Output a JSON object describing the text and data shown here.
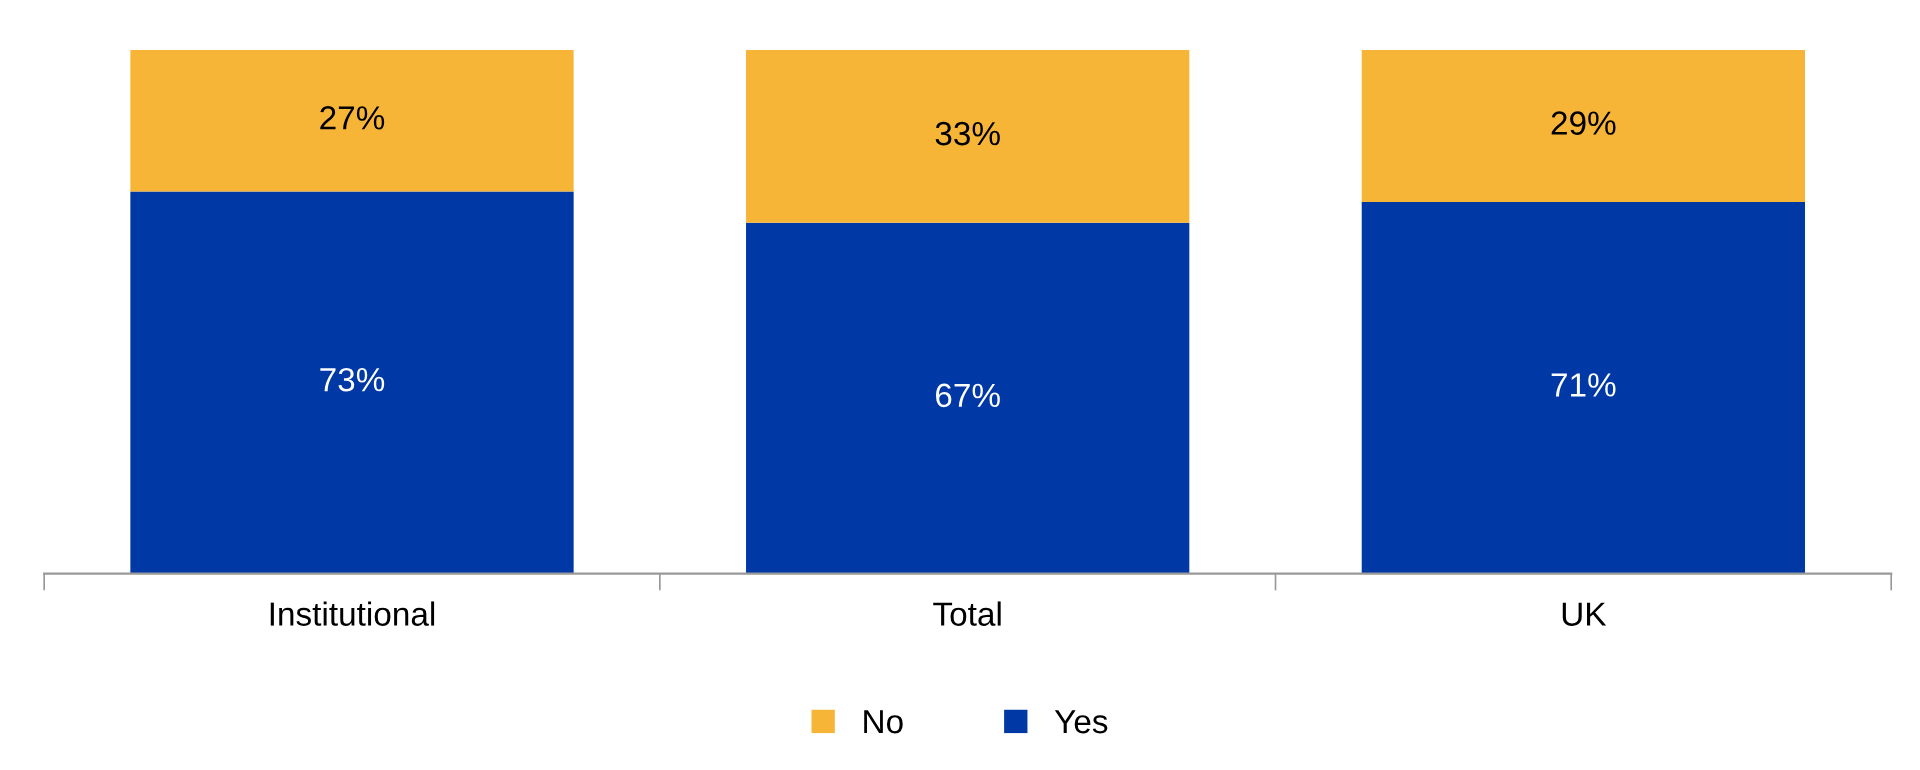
{
  "chart_data": {
    "type": "bar",
    "stacked": true,
    "categories": [
      "Institutional",
      "Total",
      "UK"
    ],
    "series": [
      {
        "name": "Yes",
        "color": "#0039a6",
        "values": [
          73,
          67,
          71
        ],
        "value_labels": [
          "73%",
          "67%",
          "71%"
        ]
      },
      {
        "name": "No",
        "color": "#f7b538",
        "values": [
          27,
          33,
          29
        ],
        "value_labels": [
          "27%",
          "33%",
          "29%"
        ]
      }
    ],
    "ylim": [
      0,
      100
    ],
    "tick_labels": "x",
    "legend": "bottom",
    "grid": false
  }
}
